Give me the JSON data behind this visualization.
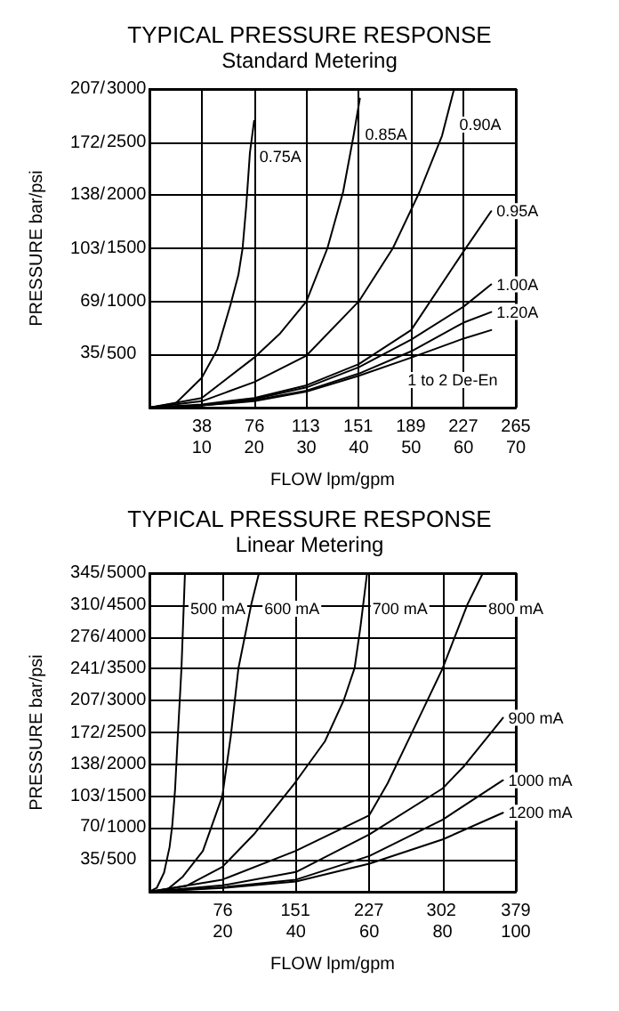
{
  "chart_data": [
    {
      "type": "line",
      "title": "TYPICAL PRESSURE RESPONSE",
      "subtitle": "Standard Metering",
      "xlabel": "FLOW lpm/gpm",
      "y2label": "PRESSURE bar/psi",
      "xlim": [
        0,
        70
      ],
      "ylim": [
        0,
        3000
      ],
      "x2lim": [
        0,
        265
      ],
      "y2lim": [
        0,
        207
      ],
      "grid": true,
      "marker": "none",
      "line_style": "solid",
      "xticks": [
        10,
        20,
        30,
        40,
        50,
        60,
        70
      ],
      "x2ticks": [
        38,
        76,
        113,
        151,
        189,
        227,
        265
      ],
      "yticks": [
        500,
        1000,
        1500,
        2000,
        2500,
        3000
      ],
      "y2ticks": [
        {
          "value": 35,
          "label": "35/"
        },
        {
          "value": 69,
          "label": "69/"
        },
        {
          "value": 103,
          "label": "103/"
        },
        {
          "value": 138,
          "label": "138/"
        },
        {
          "value": 172,
          "label": "172/"
        },
        {
          "value": 207,
          "label": "207/"
        }
      ],
      "series": [
        {
          "name": "0.75A",
          "color": "#000000",
          "x": [
            0,
            5,
            10,
            13,
            15.5,
            17,
            17.8,
            18.5,
            19.2,
            20
          ],
          "values": [
            0,
            40,
            280,
            550,
            970,
            1250,
            1500,
            1900,
            2400,
            2700
          ]
        },
        {
          "name": "0.85A",
          "color": "#000000",
          "x": [
            0,
            10,
            20,
            25,
            30,
            34,
            37,
            39,
            40.2
          ],
          "values": [
            0,
            90,
            470,
            700,
            1000,
            1500,
            2030,
            2560,
            2910
          ]
        },
        {
          "name": "0.90A",
          "color": "#000000",
          "x": [
            0,
            10,
            20,
            30,
            40,
            46.5,
            51.6,
            55.9,
            58.2
          ],
          "values": [
            0,
            60,
            240,
            490,
            1000,
            1500,
            2030,
            2560,
            3000
          ]
        },
        {
          "name": "0.95A",
          "color": "#000000",
          "x": [
            0,
            10,
            20,
            30,
            40,
            50,
            60,
            65.3
          ],
          "values": [
            0,
            30,
            90,
            210,
            410,
            730,
            1470,
            1850
          ]
        },
        {
          "name": "1.00A",
          "color": "#000000",
          "x": [
            0,
            10,
            20,
            30,
            40,
            50,
            60,
            65.3
          ],
          "values": [
            0,
            20,
            80,
            190,
            380,
            640,
            950,
            1160
          ]
        },
        {
          "name": "1.20A",
          "color": "#000000",
          "x": [
            0,
            10,
            20,
            30,
            40,
            50,
            60,
            65.3
          ],
          "values": [
            0,
            20,
            70,
            160,
            320,
            530,
            800,
            900
          ]
        },
        {
          "name": "1 to 2 De-En",
          "color": "#000000",
          "x": [
            0,
            10,
            20,
            30,
            40,
            50,
            60,
            65.3
          ],
          "values": [
            0,
            20,
            60,
            150,
            300,
            470,
            650,
            730
          ]
        }
      ]
    },
    {
      "type": "line",
      "title": "TYPICAL PRESSURE RESPONSE",
      "subtitle": "Linear Metering",
      "xlabel": "FLOW lpm/gpm",
      "y2label": "PRESSURE bar/psi",
      "xlim": [
        0,
        100
      ],
      "ylim": [
        0,
        5000
      ],
      "x2lim": [
        0,
        379
      ],
      "y2lim": [
        0,
        345
      ],
      "grid": true,
      "marker": "none",
      "line_style": "solid",
      "xticks": [
        20,
        40,
        60,
        80,
        100
      ],
      "x2ticks": [
        76,
        151,
        227,
        302,
        379
      ],
      "yticks": [
        500,
        1000,
        1500,
        2000,
        2500,
        3000,
        3500,
        4000,
        4500,
        5000
      ],
      "y2ticks": [
        {
          "value": 35,
          "label": "35/"
        },
        {
          "value": 70,
          "label": "70/"
        },
        {
          "value": 103,
          "label": "103/"
        },
        {
          "value": 138,
          "label": "138/"
        },
        {
          "value": 172,
          "label": "172/"
        },
        {
          "value": 207,
          "label": "207/"
        },
        {
          "value": 241,
          "label": "241/"
        },
        {
          "value": 276,
          "label": "276/"
        },
        {
          "value": 310,
          "label": "310/"
        },
        {
          "value": 345,
          "label": "345/"
        }
      ],
      "series": [
        {
          "name": "500 mA",
          "color": "#000000",
          "x": [
            0,
            2,
            4,
            5.5,
            6.25,
            7,
            7.6,
            8.75,
            9.7
          ],
          "values": [
            0,
            60,
            300,
            700,
            1050,
            1600,
            2280,
            3510,
            5000
          ]
        },
        {
          "name": "600 mA",
          "color": "#000000",
          "x": [
            0,
            5,
            9,
            14.6,
            19.9,
            22.2,
            24.3,
            27.8,
            29.9
          ],
          "values": [
            0,
            40,
            230,
            640,
            1500,
            2440,
            3510,
            4510,
            5000
          ]
        },
        {
          "name": "700 mA",
          "color": "#000000",
          "x": [
            0,
            10,
            19.9,
            28.5,
            39.6,
            47.9,
            53,
            56,
            57.6,
            59.4
          ],
          "values": [
            0,
            90,
            390,
            900,
            1700,
            2360,
            3000,
            3510,
            4160,
            5000
          ]
        },
        {
          "name": "800 mA",
          "color": "#000000",
          "x": [
            0,
            19.9,
            39.9,
            60,
            65,
            70,
            75,
            79.9,
            86.8,
            91
          ],
          "values": [
            0,
            190,
            640,
            1200,
            1700,
            2300,
            2900,
            3490,
            4510,
            5000
          ]
        },
        {
          "name": "900 mA",
          "color": "#000000",
          "x": [
            0,
            20,
            40,
            60,
            80,
            86,
            96.5
          ],
          "values": [
            0,
            100,
            310,
            900,
            1620,
            1980,
            2730
          ]
        },
        {
          "name": "1000 mA",
          "color": "#000000",
          "x": [
            0,
            20,
            40,
            60,
            80,
            96.5
          ],
          "values": [
            0,
            70,
            190,
            560,
            1130,
            1750
          ]
        },
        {
          "name": "1200 mA",
          "color": "#000000",
          "x": [
            0,
            20,
            40,
            60,
            80,
            96.5
          ],
          "values": [
            0,
            60,
            160,
            440,
            820,
            1240
          ]
        }
      ]
    }
  ]
}
